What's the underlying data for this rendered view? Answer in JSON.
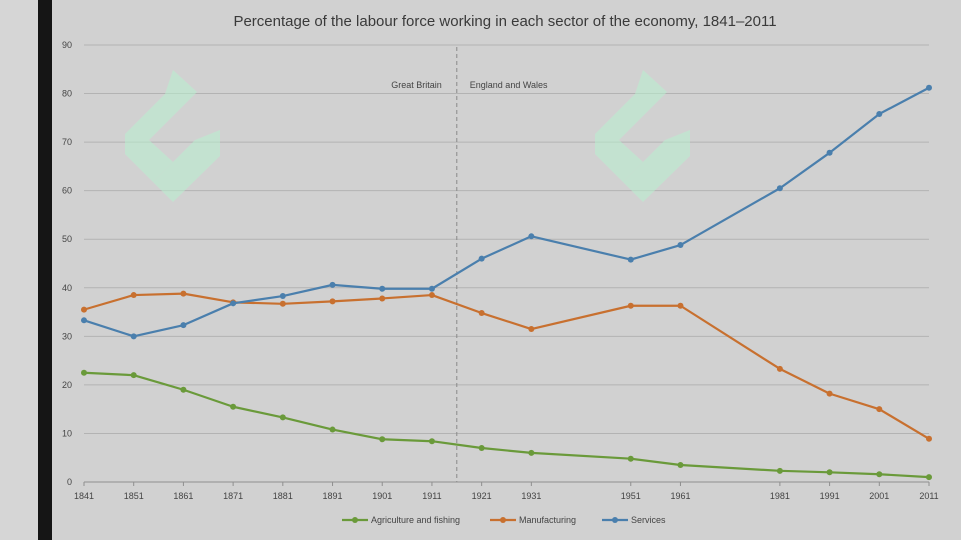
{
  "chart_data": {
    "type": "line",
    "title": "Percentage of the labour force working in each sector of the economy, 1841–2011",
    "xlabel": "",
    "ylabel": "",
    "x": [
      1841,
      1851,
      1861,
      1871,
      1881,
      1891,
      1901,
      1911,
      1921,
      1931,
      1951,
      1961,
      1981,
      1991,
      2001,
      2011
    ],
    "xlim": [
      1841,
      2011
    ],
    "ylim": [
      0,
      90
    ],
    "yticks": [
      0,
      10,
      20,
      30,
      40,
      50,
      60,
      70,
      80,
      90
    ],
    "grid": true,
    "legend_position": "bottom",
    "series": [
      {
        "name": "Agriculture and fishing",
        "color": "#6a9a3a",
        "values": [
          22.5,
          22.0,
          19.0,
          15.5,
          13.3,
          10.8,
          8.8,
          8.4,
          7.0,
          6.0,
          4.8,
          3.5,
          2.3,
          2.0,
          1.6,
          1.0
        ]
      },
      {
        "name": "Manufacturing",
        "color": "#c8702f",
        "values": [
          35.5,
          38.5,
          38.8,
          37.0,
          36.7,
          37.2,
          37.8,
          38.5,
          34.8,
          31.5,
          36.3,
          36.3,
          23.3,
          18.2,
          15.0,
          8.9
        ]
      },
      {
        "name": "Services",
        "color": "#4a7fad",
        "values": [
          33.3,
          30.0,
          32.3,
          36.8,
          38.3,
          40.6,
          39.8,
          39.8,
          46.0,
          50.6,
          45.8,
          48.8,
          60.5,
          67.8,
          75.8,
          81.2
        ]
      }
    ],
    "divider_after_x": 1911,
    "annotations": [
      "Great Britain",
      "England and Wales"
    ]
  }
}
